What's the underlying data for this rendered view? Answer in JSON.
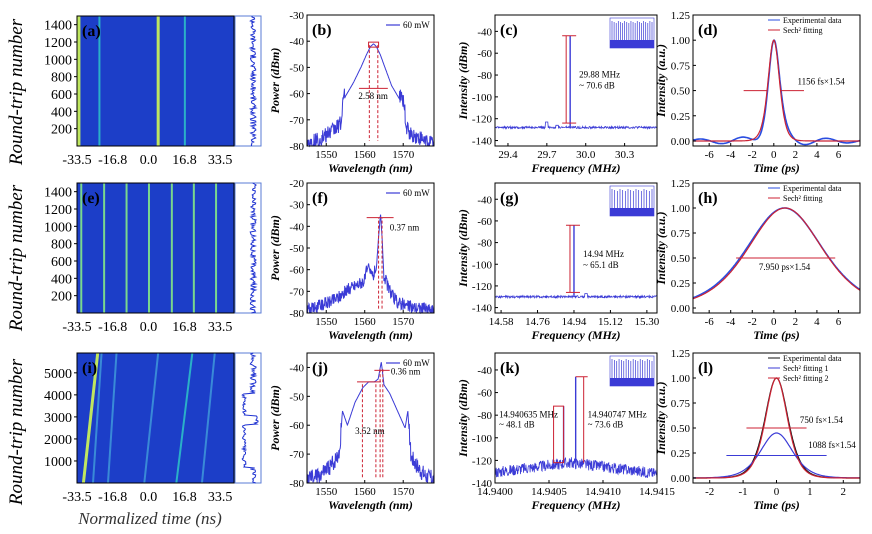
{
  "figure": {
    "row_axis_label": "Round-trip number",
    "bottom_axis_label": "Normalized time (ns)",
    "colors": {
      "spectrum": "#3b3bd6",
      "fit": "#cc2233",
      "map_bg": "#1c3ec8",
      "marker": "#cc2233"
    }
  },
  "chart_data": [
    {
      "id": "a",
      "panel": "(a)",
      "type": "heatmap",
      "ylabel": "Round-trip number",
      "xticks": [
        "-33.5",
        "-16.8",
        "0.0",
        "16.8",
        "33.5"
      ],
      "yticks": [
        "200",
        "400",
        "600",
        "800",
        "1000",
        "1200",
        "1400"
      ],
      "xlim": [
        -33.5,
        40
      ],
      "ylim": [
        0,
        1500
      ],
      "traces": [
        {
          "x0": -32.6,
          "x1": -32.6,
          "w": 3,
          "color": "#c8f05a"
        },
        {
          "x0": -23.0,
          "x1": -23.0,
          "w": 2,
          "color": "#2bb7c8"
        },
        {
          "x0": 4.5,
          "x1": 4.5,
          "w": 3,
          "color": "#c8f05a"
        },
        {
          "x0": 17.0,
          "x1": 17.0,
          "w": 2,
          "color": "#2bb7c8"
        }
      ]
    },
    {
      "id": "e",
      "panel": "(e)",
      "type": "heatmap",
      "ylabel": "Round-trip number",
      "xticks": [
        "-33.5",
        "-16.8",
        "0.0",
        "16.8",
        "33.5"
      ],
      "yticks": [
        "200",
        "400",
        "600",
        "800",
        "1000",
        "1200",
        "1400"
      ],
      "xlim": [
        -33.5,
        40
      ],
      "ylim": [
        0,
        1500
      ],
      "traces": [
        {
          "x0": -31.5,
          "x1": -31.5,
          "w": 2,
          "color": "#7fe08a"
        },
        {
          "x0": -20.8,
          "x1": -20.8,
          "w": 2,
          "color": "#7fe08a"
        },
        {
          "x0": -10.3,
          "x1": -10.3,
          "w": 2,
          "color": "#7fe08a"
        },
        {
          "x0": 0.2,
          "x1": 0.2,
          "w": 2,
          "color": "#7fe08a"
        },
        {
          "x0": 10.9,
          "x1": 10.9,
          "w": 2,
          "color": "#7fe08a"
        },
        {
          "x0": 21.2,
          "x1": 21.2,
          "w": 2,
          "color": "#7fe08a"
        },
        {
          "x0": 31.6,
          "x1": 31.6,
          "w": 2,
          "color": "#7fe08a"
        }
      ]
    },
    {
      "id": "i",
      "panel": "(i)",
      "type": "heatmap",
      "ylabel": "Round-trip number",
      "xlabel": "Normalized time (ns)",
      "xticks": [
        "-33.5",
        "-16.8",
        "0.0",
        "16.8",
        "33.5"
      ],
      "yticks": [
        "1000",
        "2000",
        "3000",
        "4000",
        "5000"
      ],
      "xlim": [
        -33.5,
        40
      ],
      "ylim": [
        0,
        5900
      ],
      "traces": [
        {
          "x0": -30.5,
          "x1": -23.8,
          "w": 3,
          "color": "#c8f05a"
        },
        {
          "x0": -26.0,
          "x1": -22.0,
          "w": 2,
          "color": "#3b8fd8"
        },
        {
          "x0": -19.0,
          "x1": -15.0,
          "w": 2,
          "color": "#3b8fd8"
        },
        {
          "x0": -2.0,
          "x1": 4.5,
          "w": 2,
          "color": "#3b8fd8"
        },
        {
          "x0": 13.0,
          "x1": 20.5,
          "w": 2,
          "color": "#2bb7c8"
        },
        {
          "x0": 25.0,
          "x1": 31.0,
          "w": 2,
          "color": "#3b8fd8"
        }
      ]
    },
    {
      "id": "b",
      "panel": "(b)",
      "type": "line",
      "xlabel": "Wavelength (nm)",
      "ylabel": "Power (dBm)",
      "xlim": [
        1545,
        1578
      ],
      "ylim": [
        -80,
        -30
      ],
      "xticks": [
        1550,
        1560,
        1570
      ],
      "yticks": [
        -80,
        -70,
        -60,
        -50,
        -40,
        -30
      ],
      "legend": "60 mW",
      "annotations": [
        {
          "text": "2.58 nm"
        }
      ],
      "series": [
        {
          "name": "60 mW",
          "x": [
            1545,
            1548,
            1550,
            1552,
            1554,
            1554.2,
            1555,
            1557,
            1559,
            1560.5,
            1561.5,
            1562.3,
            1563,
            1564,
            1565.5,
            1567,
            1569,
            1570.4,
            1570.6,
            1572,
            1575,
            1578
          ],
          "y": [
            -80,
            -79,
            -77,
            -75,
            -72,
            -64,
            -61,
            -56,
            -50,
            -45,
            -42,
            -41,
            -42,
            -45,
            -51,
            -57,
            -62,
            -65,
            -74,
            -77,
            -79,
            -80
          ]
        }
      ]
    },
    {
      "id": "f",
      "panel": "(f)",
      "type": "line",
      "xlabel": "Wavelength (nm)",
      "ylabel": "Power (dBm)",
      "xlim": [
        1545,
        1578
      ],
      "ylim": [
        -80,
        -20
      ],
      "xticks": [
        1550,
        1560,
        1570
      ],
      "yticks": [
        -80,
        -70,
        -60,
        -50,
        -40,
        -30,
        -20
      ],
      "legend": "60 mW",
      "annotations": [
        {
          "text": "0.37 nm"
        }
      ],
      "series": [
        {
          "name": "60 mW",
          "x": [
            1545,
            1548,
            1551,
            1553,
            1554.5,
            1556,
            1558,
            1560,
            1561,
            1561.5,
            1562.2,
            1563,
            1563.6,
            1564.1,
            1564.5,
            1565,
            1566,
            1567,
            1568.5,
            1571,
            1575,
            1578
          ],
          "y": [
            -80,
            -78,
            -76,
            -74,
            -72,
            -70,
            -68,
            -66,
            -57,
            -63,
            -64,
            -60,
            -45,
            -34,
            -45,
            -64,
            -69,
            -73,
            -76,
            -78,
            -79,
            -80
          ]
        }
      ]
    },
    {
      "id": "j",
      "panel": "(j)",
      "type": "line",
      "xlabel": "Wavelength (nm)",
      "ylabel": "Power (dBm)",
      "xlim": [
        1545,
        1578
      ],
      "ylim": [
        -80,
        -35
      ],
      "xticks": [
        1550,
        1560,
        1570
      ],
      "yticks": [
        -80,
        -70,
        -60,
        -50,
        -40
      ],
      "legend": "60 mW",
      "annotations": [
        {
          "text": "0.36 nm"
        },
        {
          "text": "3.52 nm"
        }
      ],
      "series": [
        {
          "name": "60 mW",
          "x": [
            1545,
            1548,
            1550,
            1552,
            1553.5,
            1554.2,
            1555.5,
            1557.5,
            1559.5,
            1561,
            1562.5,
            1563.5,
            1564.3,
            1565,
            1566.5,
            1568.5,
            1570.5,
            1571.2,
            1572,
            1574,
            1576,
            1578
          ],
          "y": [
            -80,
            -79,
            -77,
            -74,
            -70,
            -55,
            -60,
            -52,
            -47,
            -45,
            -45,
            -44,
            -38,
            -46,
            -49,
            -55,
            -61,
            -55,
            -72,
            -76,
            -79,
            -80
          ]
        }
      ]
    },
    {
      "id": "c",
      "panel": "(c)",
      "type": "line",
      "xlabel": "Frequency (MHz)",
      "ylabel": "Intensity (dBm)",
      "xlim": [
        29.3,
        30.55
      ],
      "ylim": [
        -145,
        -25
      ],
      "xticks": [
        29.4,
        29.7,
        30.0,
        30.3
      ],
      "yticks": [
        -140,
        -120,
        -100,
        -80,
        -60,
        -40
      ],
      "annotations": [
        {
          "text": "29.88 MHz"
        },
        {
          "text": "~ 70.6 dB"
        }
      ],
      "series": [
        {
          "name": "RF",
          "noise_floor": -128,
          "peak_x": 29.88,
          "peak_y": -44,
          "side_bumps": [
            [
              29.7,
              -123
            ],
            [
              29.78,
              -126
            ]
          ]
        }
      ],
      "inset": {
        "peaks": 20
      }
    },
    {
      "id": "g",
      "panel": "(g)",
      "type": "line",
      "xlabel": "Frequency (MHz)",
      "ylabel": "Intensity (dBm)",
      "xlim": [
        14.55,
        15.35
      ],
      "ylim": [
        -145,
        -25
      ],
      "xticks": [
        14.58,
        14.76,
        14.94,
        15.12,
        15.3
      ],
      "yticks": [
        -140,
        -120,
        -100,
        -80,
        -60,
        -40
      ],
      "annotations": [
        {
          "text": "14.94 MHz"
        },
        {
          "text": "~ 65.1 dB"
        }
      ],
      "series": [
        {
          "name": "RF",
          "noise_floor": -130,
          "peak_x": 14.94,
          "peak_y": -64,
          "side_bumps": [
            [
              15.0,
              -127
            ]
          ]
        }
      ],
      "inset": {
        "peaks": 16
      }
    },
    {
      "id": "k",
      "panel": "(k)",
      "type": "line",
      "xlabel": "Frequency (MHz)",
      "ylabel": "Intensity (dBm)",
      "xlim": [
        14.94,
        14.9415
      ],
      "ylim": [
        -140,
        -25
      ],
      "xticks": [
        14.94,
        14.9405,
        14.941,
        14.9415
      ],
      "yticks": [
        -140,
        -120,
        -100,
        -80,
        -60,
        -40
      ],
      "annotations": [
        {
          "text": "14.940635 MHz"
        },
        {
          "text": "~ 48.1 dB"
        },
        {
          "text": "14.940747 MHz"
        },
        {
          "text": "~ 73.6 dB"
        }
      ],
      "series": [
        {
          "name": "RF",
          "noise_floor": -122,
          "noise_amp": 10,
          "peaks": [
            [
              14.940635,
              -72
            ],
            [
              14.940747,
              -46
            ]
          ]
        }
      ],
      "inset": {
        "peaks": 18
      }
    },
    {
      "id": "d",
      "panel": "(d)",
      "type": "line",
      "xlabel": "Time (ps)",
      "ylabel": "Intensity (a.u.)",
      "xlim": [
        -7.5,
        8
      ],
      "ylim": [
        -0.05,
        1.25
      ],
      "xticks": [
        -6,
        -4,
        -2,
        0,
        2,
        4,
        6
      ],
      "yticks": [
        0.0,
        0.25,
        0.5,
        0.75,
        1.0,
        1.25
      ],
      "legend": [
        "Experimental data",
        "Sech² fitting"
      ],
      "annotations": [
        {
          "text": "1156 fs×1.54"
        }
      ],
      "series": [
        {
          "name": "Experimental data",
          "kind": "sech2_ripple",
          "center": 0,
          "width": 0.71,
          "amp": 1.0,
          "ripple": 0.06
        },
        {
          "name": "Sech² fitting",
          "kind": "sech2",
          "center": 0,
          "width": 0.71,
          "amp": 1.0
        }
      ]
    },
    {
      "id": "h",
      "panel": "(h)",
      "type": "line",
      "xlabel": "Time (ps)",
      "ylabel": "Intensity (a.u.)",
      "xlim": [
        -7.5,
        8
      ],
      "ylim": [
        -0.05,
        1.25
      ],
      "xticks": [
        -6,
        -4,
        -2,
        0,
        2,
        4,
        6
      ],
      "yticks": [
        0.0,
        0.25,
        0.5,
        0.75,
        1.0,
        1.25
      ],
      "legend": [
        "Experimental data",
        "Sech² fitting"
      ],
      "annotations": [
        {
          "text": "7.950 ps×1.54"
        }
      ],
      "series": [
        {
          "name": "Experimental data",
          "kind": "sech2",
          "center": 1.0,
          "width": 4.7,
          "amp": 1.0
        },
        {
          "name": "Sech² fitting",
          "kind": "sech2",
          "center": 1.05,
          "width": 4.6,
          "amp": 1.0
        }
      ]
    },
    {
      "id": "l",
      "panel": "(l)",
      "type": "line",
      "xlabel": "Time (ps)",
      "ylabel": "Intensity (a.u.)",
      "xlim": [
        -2.5,
        2.5
      ],
      "ylim": [
        -0.05,
        1.25
      ],
      "xticks": [
        -2,
        -1,
        0,
        1,
        2
      ],
      "yticks": [
        0.0,
        0.25,
        0.5,
        0.75,
        1.0,
        1.25
      ],
      "legend": [
        "Experimental data",
        "Sech² fitting 1",
        "Sech² fitting 2"
      ],
      "annotations": [
        {
          "text": "750 fs×1.54"
        },
        {
          "text": "1088 fs×1.54"
        }
      ],
      "series": [
        {
          "name": "Experimental data",
          "kind": "sech2",
          "center": 0,
          "width": 0.46,
          "amp": 1.0
        },
        {
          "name": "Sech² fitting 1",
          "kind": "sech2",
          "center": 0,
          "width": 0.64,
          "amp": 0.45
        },
        {
          "name": "Sech² fitting 2",
          "kind": "sech2",
          "center": 0,
          "width": 0.44,
          "amp": 1.0
        }
      ]
    }
  ]
}
